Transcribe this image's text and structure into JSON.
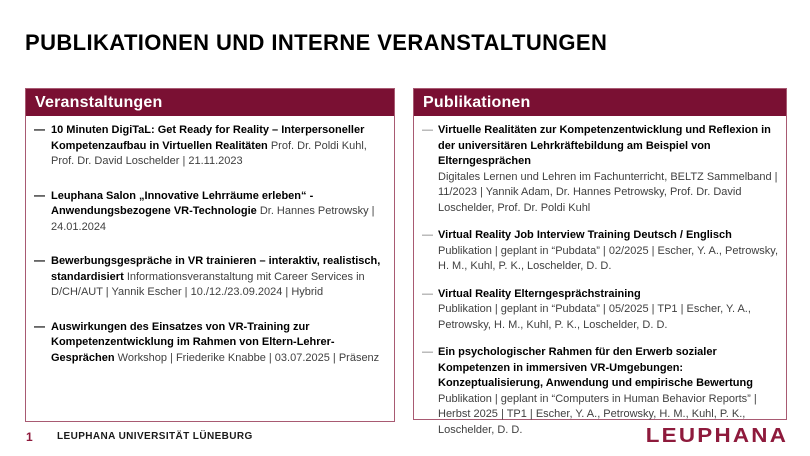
{
  "title": "PUBLIKATIONEN UND INTERNE VERANSTALTUNGEN",
  "bullet": "—",
  "colors": {
    "brand_bar": "#7a1033",
    "panel_border": "#a85a72",
    "logo_red": "#8e1a3c"
  },
  "left_panel": {
    "header": "Veranstaltungen",
    "items": [
      {
        "title": "10 Minuten DigiTaL: Get Ready for Reality – Interpersoneller Kompetenzaufbau in Virtuellen Realitäten",
        "details": "Prof. Dr. Poldi Kuhl, Prof. Dr. David Loschelder | 21.11.2023"
      },
      {
        "title": "Leuphana Salon „Innovative Lehrräume erleben“ - Anwendungsbezogene VR-Technologie",
        "details": "Dr. Hannes Petrowsky | 24.01.2024"
      },
      {
        "title": "Bewerbungsgespräche in VR trainieren – interaktiv, realistisch, standardisiert",
        "details": "Informationsveranstaltung mit Career Services in D/CH/AUT | Yannik Escher | 10./12./23.09.2024 | Hybrid"
      },
      {
        "title": "Auswirkungen des Einsatzes von VR-Training zur Kompetenzentwicklung im Rahmen von Eltern-Lehrer-Gesprächen",
        "details": "Workshop | Friederike Knabbe | 03.07.2025 | Präsenz"
      }
    ]
  },
  "right_panel": {
    "header": "Publikationen",
    "items": [
      {
        "title": "Virtuelle Realitäten zur Kompetenzentwicklung und Reflexion in der universitären Lehrkräftebildung am Beispiel von Elterngesprächen",
        "details": "Digitales Lernen und Lehren im Fachunterricht, BELTZ Sammelband | 11/2023 | Yannik Adam, Dr. Hannes Petrowsky, Prof. Dr. David Loschelder, Prof. Dr. Poldi Kuhl"
      },
      {
        "title": "Virtual Reality Job Interview Training Deutsch / Englisch",
        "details": "Publikation | geplant in “Pubdata” | 02/2025 | Escher, Y. A., Petrowsky, H. M., Kuhl, P. K., Loschelder, D. D."
      },
      {
        "title": "Virtual Reality Elterngesprächstraining",
        "details": "Publikation | geplant in “Pubdata” | 05/2025 | TP1 | Escher, Y. A., Petrowsky, H. M., Kuhl, P. K., Loschelder, D. D."
      },
      {
        "title": "Ein psychologischer Rahmen für den Erwerb sozialer Kompetenzen in immersiven VR-Umgebungen: Konzeptualisierung, Anwendung und empirische Bewertung",
        "details": "Publikation | geplant in “Computers in Human Behavior Reports” | Herbst 2025 | TP1 | Escher, Y. A., Petrowsky, H. M., Kuhl, P. K., Loschelder, D. D."
      }
    ]
  },
  "footer": {
    "page_number": "1",
    "institution": "LEUPHANA UNIVERSITÄT LÜNEBURG",
    "logo_text": "LEUPHANA"
  }
}
